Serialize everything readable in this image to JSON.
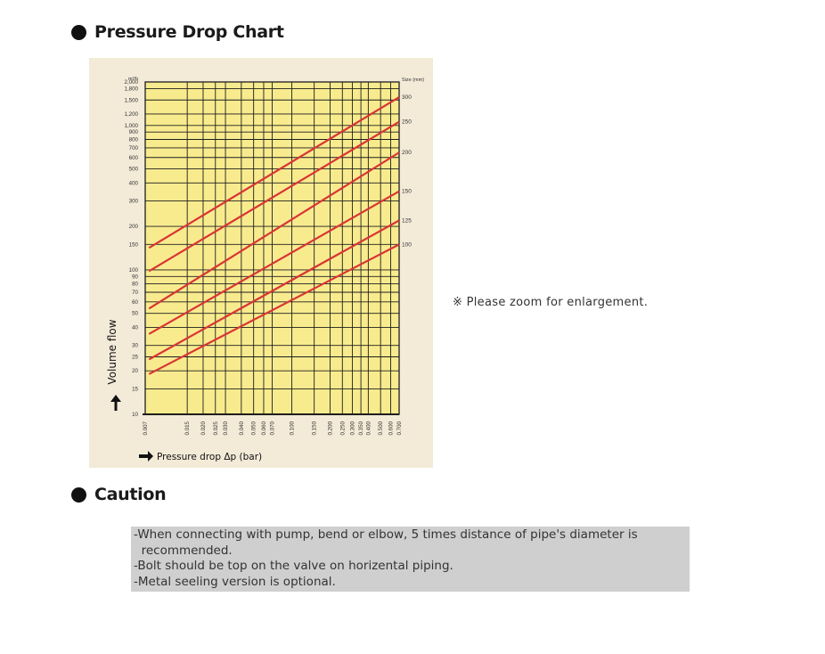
{
  "headings": {
    "pressure_drop": "Pressure Drop Chart",
    "caution": "Caution"
  },
  "zoom_note": "※ Please zoom for enlargement.",
  "caution_lines": [
    "-When connecting with pump, bend or elbow, 5 times distance of pipe's diameter is",
    "  recommended.",
    "-Bolt should be top on the valve on horizental piping.",
    "-Metal seeling version is optional."
  ],
  "colors": {
    "plot_background": "#f8eb8e",
    "panel_background": "#f3ead8",
    "grid": "#1e1e1e",
    "series_line": "#d93535",
    "caution_background": "#cfcfcf"
  },
  "chart_data": {
    "type": "line",
    "title": "",
    "xlabel": "Pressure drop Δp (bar)",
    "ylabel": "Volume flow",
    "y_unit": "m³/h",
    "right_axis_unit": "Size (mm)",
    "x_scale": "log",
    "y_scale": "log",
    "xlim": [
      0.007,
      0.7
    ],
    "ylim": [
      10,
      2000
    ],
    "grid": true,
    "x_ticks": [
      0.007,
      0.015,
      0.02,
      0.025,
      0.03,
      0.04,
      0.05,
      0.06,
      0.07,
      0.1,
      0.15,
      0.2,
      0.25,
      0.3,
      0.35,
      0.4,
      0.5,
      0.6,
      0.7
    ],
    "x_tick_labels": [
      "0.007",
      "0.015",
      "0.020",
      "0.025",
      "0.030",
      "0.040",
      "0.050",
      "0.060",
      "0.070",
      "0.100",
      "0.150",
      "0.200",
      "0.250",
      "0.300",
      "0.350",
      "0.400",
      "0.500",
      "0.600",
      "0.700"
    ],
    "y_ticks": [
      10,
      15,
      20,
      25,
      30,
      40,
      50,
      60,
      70,
      80,
      90,
      100,
      150,
      200,
      300,
      400,
      500,
      600,
      700,
      800,
      900,
      1000,
      1200,
      1500,
      1800,
      2000
    ],
    "y_tick_labels": [
      "10",
      "15",
      "20",
      "25",
      "30",
      "40",
      "50",
      "60",
      "70",
      "80",
      "90",
      "100",
      "150",
      "200",
      "300",
      "400",
      "500",
      "600",
      "700",
      "800",
      "900",
      "1,000",
      "1,200",
      "1,500",
      "1,800",
      "2,000"
    ],
    "series": [
      {
        "name": "300",
        "x": [
          0.0075,
          0.7
        ],
        "y": [
          142,
          1570
        ]
      },
      {
        "name": "250",
        "x": [
          0.0075,
          0.7
        ],
        "y": [
          98,
          1060
        ]
      },
      {
        "name": "200",
        "x": [
          0.0075,
          0.7
        ],
        "y": [
          54,
          650
        ]
      },
      {
        "name": "150",
        "x": [
          0.0075,
          0.7
        ],
        "y": [
          36,
          350
        ]
      },
      {
        "name": "125",
        "x": [
          0.0075,
          0.7
        ],
        "y": [
          24,
          220
        ]
      },
      {
        "name": "100",
        "x": [
          0.0075,
          0.7
        ],
        "y": [
          19,
          150
        ]
      }
    ]
  }
}
